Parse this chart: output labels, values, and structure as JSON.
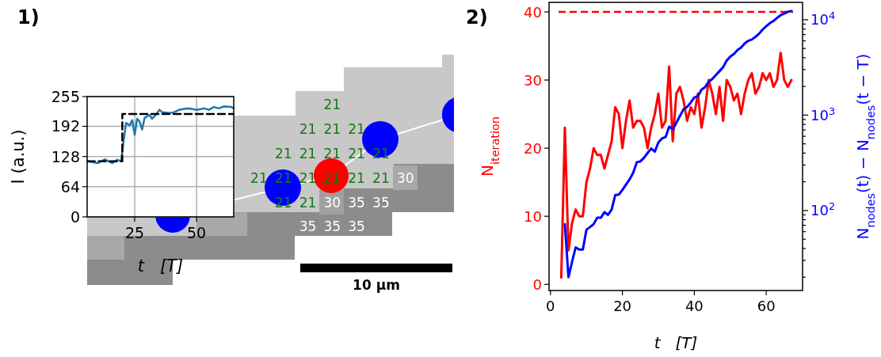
{
  "chart_data": [
    {
      "type": "other",
      "title": "1)",
      "annotations": [
        "21",
        "21",
        "21",
        "21",
        "21",
        "21",
        "21",
        "21",
        "21",
        "21",
        "21",
        "21",
        "21",
        "21",
        "21",
        "30",
        "21",
        "21",
        "30",
        "35",
        "35",
        "35",
        "35",
        "35",
        "10 µm"
      ]
    },
    {
      "type": "line",
      "xlabel": "t   [T]",
      "ylabel": "I (a.u.)",
      "xlim": [
        5.8,
        65
      ],
      "xticks": [
        25,
        50
      ],
      "ylim": [
        0,
        255
      ],
      "yticks": [
        0,
        64,
        128,
        192,
        255
      ],
      "grid": true,
      "series": [
        {
          "color": "#1f77b4",
          "x": [
            6,
            10,
            13,
            16,
            18,
            19.5,
            20.5,
            21.5,
            23,
            24,
            25,
            26,
            27,
            28,
            29,
            31,
            32,
            33.5,
            35,
            36,
            39,
            41,
            43,
            45,
            47,
            50,
            53,
            55,
            57,
            59,
            61,
            64,
            65
          ],
          "values": [
            118,
            114,
            122,
            114,
            121,
            118,
            160,
            199,
            194,
            205,
            174,
            208,
            202,
            185,
            210,
            216,
            208,
            216,
            227,
            222,
            220,
            222,
            227,
            229,
            230,
            227,
            230,
            227,
            233,
            230,
            234,
            233,
            230
          ]
        },
        {
          "color": "#000000",
          "line_style": "dashed",
          "x": [
            6,
            20,
            20,
            65
          ],
          "values": [
            118,
            118,
            218,
            218
          ]
        }
      ]
    },
    {
      "type": "line",
      "title": "2)",
      "xlabel": "t   [T]",
      "ylabel": "N$_{iteration}$",
      "y2label": "N$_{nodes}$(t) − N$_{nodes}$(t − T)",
      "xlim": [
        -0.4,
        70.1
      ],
      "xticks": [
        0,
        20,
        40,
        60
      ],
      "ylim": [
        -0.9,
        41.4
      ],
      "yticks": [
        0,
        10,
        20,
        30,
        40
      ],
      "y2lim": [
        14.5,
        15200
      ],
      "log": "y2",
      "y2ticks": [
        {
          "value": 20,
          "label": null
        },
        {
          "value": 30,
          "label": null
        },
        {
          "value": 40,
          "label": null
        },
        {
          "value": 50,
          "label": null
        },
        {
          "value": 60,
          "label": null
        },
        {
          "value": 70,
          "label": null
        },
        {
          "value": 80,
          "label": null
        },
        {
          "value": 90,
          "label": null
        },
        {
          "value": 100,
          "label": "10$^{2}$"
        },
        {
          "value": 200,
          "label": null
        },
        {
          "value": 300,
          "label": null
        },
        {
          "value": 400,
          "label": null
        },
        {
          "value": 500,
          "label": null
        },
        {
          "value": 600,
          "label": null
        },
        {
          "value": 700,
          "label": null
        },
        {
          "value": 800,
          "label": null
        },
        {
          "value": 900,
          "label": null
        },
        {
          "value": 1000,
          "label": "10$^{3}$"
        },
        {
          "value": 2000,
          "label": null
        },
        {
          "value": 3000,
          "label": null
        },
        {
          "value": 4000,
          "label": null
        },
        {
          "value": 5000,
          "label": null
        },
        {
          "value": 6000,
          "label": null
        },
        {
          "value": 7000,
          "label": null
        },
        {
          "value": 8000,
          "label": null
        },
        {
          "value": 9000,
          "label": null
        },
        {
          "value": 10000,
          "label": "10$^{4}$"
        }
      ],
      "ref_lines": [
        {
          "axis": "y",
          "value": 40,
          "color": "#ff0000",
          "line_style": "dashed"
        }
      ],
      "series": [
        {
          "color": "#ff0000",
          "x": [
            3,
            4,
            5,
            6,
            7,
            8,
            9,
            10,
            11,
            12,
            13,
            14,
            15,
            16,
            17,
            18,
            19,
            20,
            21,
            22,
            23,
            24,
            25,
            26,
            27,
            28,
            29,
            30,
            31,
            32,
            33,
            34,
            35,
            36,
            37,
            38,
            39,
            40,
            41,
            42,
            43,
            44,
            45,
            46,
            47,
            48,
            49,
            50,
            51,
            52,
            53,
            54,
            55,
            56,
            57,
            58,
            59,
            60,
            61,
            62,
            63,
            64,
            65,
            66,
            67
          ],
          "values": [
            1,
            23,
            5,
            9,
            11,
            10,
            10,
            15,
            17,
            20,
            19,
            19,
            17,
            19,
            21,
            26,
            25,
            20,
            24,
            27,
            23,
            24,
            24,
            23,
            20,
            23,
            25,
            28,
            23,
            24,
            32,
            21,
            28,
            29,
            27,
            24,
            26,
            25,
            28,
            23,
            26,
            30,
            28,
            25,
            29,
            24,
            30,
            29,
            27,
            28,
            25,
            28,
            30,
            31,
            28,
            29,
            31,
            30,
            31,
            29,
            30,
            34,
            30,
            29,
            30
          ]
        },
        {
          "color": "#0000ff",
          "axis": "y2",
          "x": [
            4,
            5,
            6,
            7,
            8,
            9,
            10,
            11,
            12,
            13,
            14,
            15,
            16,
            17,
            18,
            19,
            20,
            21,
            22,
            23,
            24,
            25,
            26,
            27,
            28,
            29,
            30,
            31,
            32,
            33,
            34,
            35,
            36,
            37,
            38,
            39,
            40,
            41,
            42,
            43,
            44,
            45,
            46,
            47,
            48,
            49,
            50,
            51,
            52,
            53,
            54,
            55,
            56,
            57,
            58,
            59,
            60,
            61,
            62,
            63,
            64,
            65,
            66,
            67
          ],
          "values": [
            72,
            20,
            29,
            41,
            39,
            39,
            63,
            67,
            72,
            84,
            84,
            96,
            90,
            102,
            145,
            147,
            164,
            187,
            212,
            249,
            321,
            327,
            357,
            401,
            447,
            414,
            517,
            569,
            588,
            758,
            712,
            830,
            980,
            1150,
            1220,
            1350,
            1530,
            1580,
            1850,
            1970,
            2240,
            2390,
            2630,
            2890,
            3180,
            3730,
            4100,
            4370,
            4810,
            5120,
            5640,
            6010,
            6210,
            6610,
            7130,
            7900,
            8530,
            9200,
            9690,
            10450,
            11150,
            11580,
            12110,
            12340
          ]
        }
      ]
    }
  ]
}
